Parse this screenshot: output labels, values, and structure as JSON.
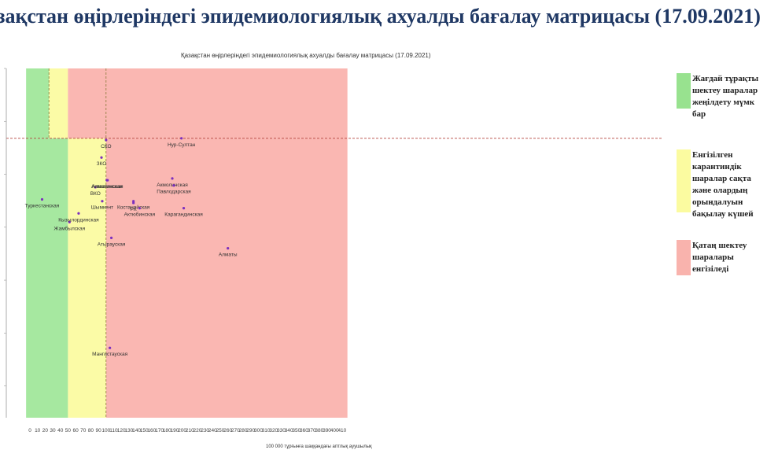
{
  "slide_title": "зақстан өңірлеріндегі эпидемиологиялық ахуалды бағалау матрицасы  (17.09.2021)",
  "colors": {
    "green": "#a6e8a0",
    "yellow": "#fbfba6",
    "red": "#fab7b2",
    "point": "#7b2fbe"
  },
  "legend": [
    {
      "color": "#98e28f",
      "text": "Жағдай тұрақты\nшектеу шаралар\nжеңілдету мүмк\nбар"
    },
    {
      "color": "#fbfba0",
      "text": "Енгізілген\nкарантиндік\nшаралар сақта\nжәне олардың\nорындалуын\nбақылау күшей"
    },
    {
      "color": "#f9b3ad",
      "text": "Қатаң шектеу\nшаралары\nенгізіледі"
    }
  ],
  "chart_data": {
    "type": "scatter",
    "title": "Қазақстан өңірлеріндегі эпидемиологиялық ахуалды бағалау матрицасы  (17.09.2021)",
    "xlabel": "100 000 тұрғынға шаққандағы аптлық ауушылық",
    "ylabel": "",
    "xlim": [
      -5,
      417
    ],
    "ylim": [
      0,
      1
    ],
    "xticks": [
      0,
      10,
      20,
      30,
      40,
      50,
      60,
      70,
      80,
      90,
      100,
      110,
      120,
      130,
      140,
      150,
      160,
      170,
      180,
      190,
      200,
      210,
      220,
      230,
      240,
      250,
      260,
      270,
      280,
      290,
      300,
      310,
      320,
      330,
      340,
      350,
      360,
      370,
      380,
      390,
      400,
      410
    ],
    "grid": false,
    "zones": [
      {
        "name": "green",
        "x": [
          -5,
          50
        ],
        "y": [
          0,
          0.8
        ]
      },
      {
        "name": "green",
        "x": [
          -5,
          25
        ],
        "y": [
          0.8,
          1
        ]
      },
      {
        "name": "yellow",
        "x": [
          25,
          50
        ],
        "y": [
          0.8,
          1
        ]
      },
      {
        "name": "yellow",
        "x": [
          50,
          100
        ],
        "y": [
          0,
          0.8
        ]
      },
      {
        "name": "red",
        "x": [
          50,
          417
        ],
        "y": [
          0.8,
          1
        ]
      },
      {
        "name": "red",
        "x": [
          100,
          417
        ],
        "y": [
          0,
          0.8
        ]
      }
    ],
    "threshold_lines": {
      "x": [
        25,
        100
      ],
      "y": 0.8
    },
    "points": [
      {
        "label": "Туркестанская",
        "x": 16,
        "y": 0.625
      },
      {
        "label": "Жамбылская",
        "x": 52,
        "y": 0.56
      },
      {
        "label": "Кызылординская",
        "x": 64,
        "y": 0.585
      },
      {
        "label": "ВКО",
        "x": 86,
        "y": 0.66
      },
      {
        "label": "ЗКО",
        "x": 94,
        "y": 0.745
      },
      {
        "label": "Шымкент",
        "x": 95,
        "y": 0.62
      },
      {
        "label": "СКО",
        "x": 100,
        "y": 0.795
      },
      {
        "label": "Алматинская",
        "x": 101,
        "y": 0.68
      },
      {
        "label": "Алматинская",
        "x": 102,
        "y": 0.68
      },
      {
        "label": "Атырауская",
        "x": 107,
        "y": 0.515
      },
      {
        "label": "Мангистауская",
        "x": 105,
        "y": 0.2
      },
      {
        "label": "РК",
        "x": 136,
        "y": 0.615
      },
      {
        "label": "Костанайская",
        "x": 136,
        "y": 0.62
      },
      {
        "label": "Актюбинская",
        "x": 144,
        "y": 0.6
      },
      {
        "label": "Акмолинская",
        "x": 187,
        "y": 0.685
      },
      {
        "label": "Павлодарская",
        "x": 189,
        "y": 0.665
      },
      {
        "label": "Нур-Султан",
        "x": 199,
        "y": 0.8
      },
      {
        "label": "Карагандинская",
        "x": 202,
        "y": 0.6
      },
      {
        "label": "Алматы",
        "x": 260,
        "y": 0.485
      }
    ]
  }
}
